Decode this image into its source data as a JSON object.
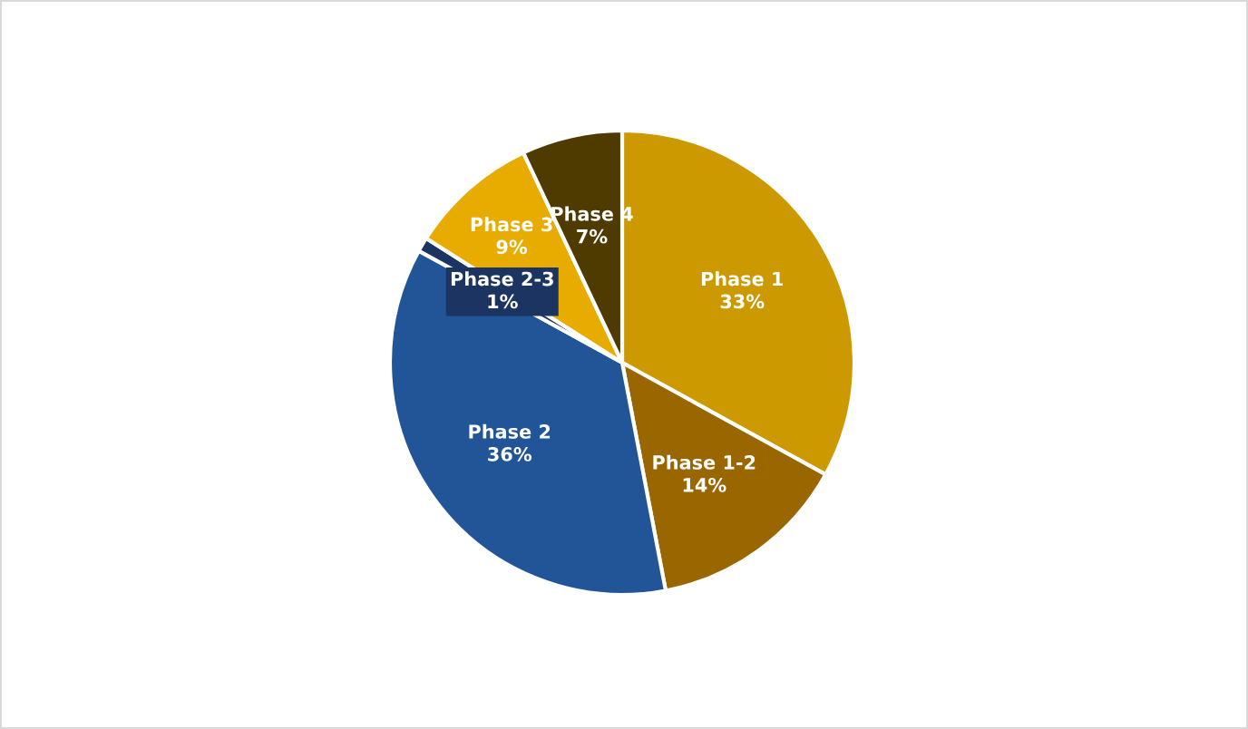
{
  "chart_data": {
    "type": "pie",
    "categories": [
      "Phase 1",
      "Phase 1-2",
      "Phase 2",
      "Phase 2-3",
      "Phase 3",
      "Phase 4"
    ],
    "values": [
      33,
      14,
      36,
      1,
      9,
      7
    ],
    "value_labels": [
      "33%",
      "14%",
      "36%",
      "1%",
      "9%",
      "7%"
    ],
    "colors": [
      "#cc9900",
      "#996600",
      "#215597",
      "#1b3461",
      "#e8ac00",
      "#4f3a00"
    ],
    "legend": false
  }
}
